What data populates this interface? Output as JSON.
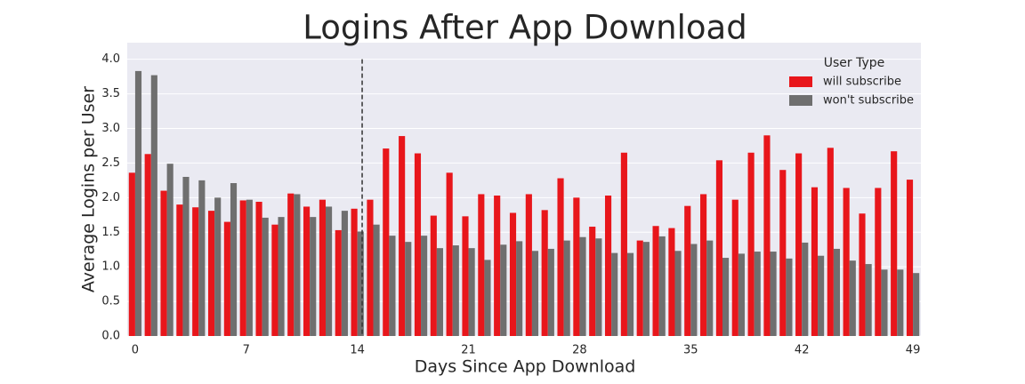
{
  "chart_data": {
    "type": "grouped_bar",
    "title": "Logins After App Download",
    "x_label": "Days Since App Download",
    "y_label": "Average Logins per User",
    "categories": [
      "0",
      null,
      null,
      null,
      null,
      null,
      null,
      "7",
      null,
      null,
      null,
      null,
      null,
      null,
      "14",
      null,
      null,
      null,
      null,
      null,
      null,
      "21",
      null,
      null,
      null,
      null,
      null,
      null,
      "28",
      null,
      null,
      null,
      null,
      null,
      null,
      "35",
      null,
      null,
      null,
      null,
      null,
      null,
      "42",
      null,
      null,
      null,
      null,
      null,
      null,
      "49"
    ],
    "series": [
      {
        "name": "will subscribe",
        "color": "#e8161b",
        "values": [
          2.36,
          2.63,
          2.1,
          1.9,
          1.86,
          1.81,
          1.65,
          1.96,
          1.94,
          1.61,
          2.06,
          1.87,
          1.97,
          1.53,
          1.84,
          1.97,
          2.71,
          2.89,
          2.64,
          1.74,
          2.36,
          1.73,
          2.05,
          2.03,
          1.78,
          2.05,
          1.82,
          2.28,
          2.0,
          1.58,
          2.03,
          2.65,
          1.38,
          1.59,
          1.56,
          1.88,
          2.05,
          2.54,
          1.97,
          2.65,
          2.9,
          2.4,
          2.64,
          2.15,
          2.72,
          2.14,
          1.77,
          2.14,
          2.67,
          2.26
        ]
      },
      {
        "name": "won't subscribe",
        "color": "#6f6f6f",
        "values": [
          3.83,
          3.77,
          2.49,
          2.3,
          2.25,
          2.0,
          2.21,
          1.97,
          1.71,
          1.72,
          2.05,
          1.72,
          1.87,
          1.81,
          1.51,
          1.61,
          1.45,
          1.36,
          1.45,
          1.27,
          1.31,
          1.27,
          1.1,
          1.32,
          1.37,
          1.23,
          1.26,
          1.38,
          1.43,
          1.41,
          1.2,
          1.2,
          1.36,
          1.44,
          1.23,
          1.33,
          1.38,
          1.13,
          1.19,
          1.22,
          1.22,
          1.12,
          1.35,
          1.16,
          1.26,
          1.09,
          1.04,
          0.96,
          0.96,
          0.91
        ]
      }
    ],
    "legend_title": "User Type",
    "legend": "upper right",
    "ylim": [
      0,
      4.24
    ],
    "yticks": [
      {
        "value": 0,
        "label": "0.0"
      },
      0.5,
      {
        "value": 1,
        "label": "1.0"
      },
      1.5,
      {
        "value": 2,
        "label": "2.0"
      },
      2.5,
      {
        "value": 3,
        "label": "3.0"
      },
      3.5,
      {
        "value": 4,
        "label": "4.0"
      }
    ],
    "grid": true,
    "vline": 14.3
  }
}
